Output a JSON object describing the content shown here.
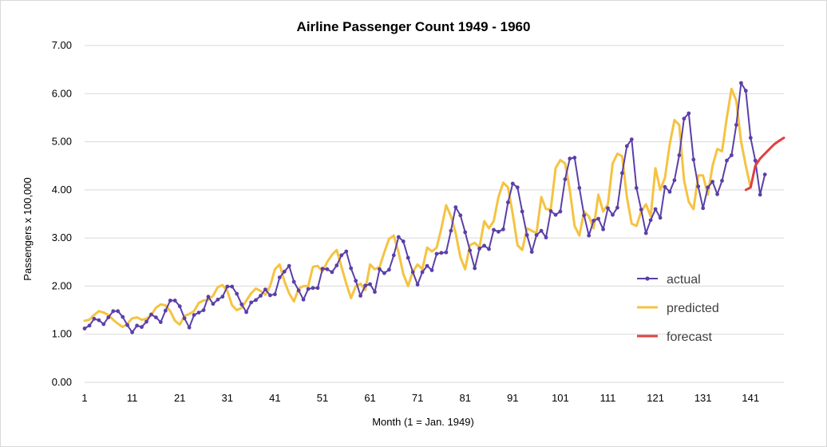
{
  "chart_data": {
    "type": "line",
    "title": "Airline Passenger Count 1949 - 1960",
    "xlabel": "Month  (1 = Jan. 1949)",
    "ylabel": "Passengers x 100,000",
    "ylim": [
      0,
      7
    ],
    "xlim": [
      1,
      148
    ],
    "yticks": [
      "0.00",
      "1.00",
      "2.00",
      "3.00",
      "4.00",
      "5.00",
      "6.00",
      "7.00"
    ],
    "xticks": [
      "1",
      "11",
      "21",
      "31",
      "41",
      "51",
      "61",
      "71",
      "81",
      "91",
      "101",
      "111",
      "121",
      "131",
      "141"
    ],
    "grid": "horizontal",
    "legend_position": "right",
    "series": [
      {
        "name": "actual",
        "color": "#5b3fa8",
        "markers": true,
        "x_start": 1,
        "values": [
          1.12,
          1.18,
          1.32,
          1.29,
          1.21,
          1.35,
          1.48,
          1.48,
          1.36,
          1.19,
          1.04,
          1.18,
          1.15,
          1.26,
          1.41,
          1.35,
          1.25,
          1.49,
          1.7,
          1.7,
          1.58,
          1.33,
          1.14,
          1.4,
          1.45,
          1.5,
          1.78,
          1.63,
          1.72,
          1.78,
          1.99,
          1.99,
          1.84,
          1.62,
          1.46,
          1.66,
          1.71,
          1.8,
          1.93,
          1.81,
          1.83,
          2.18,
          2.3,
          2.42,
          2.09,
          1.91,
          1.72,
          1.94,
          1.96,
          1.96,
          2.36,
          2.35,
          2.29,
          2.43,
          2.64,
          2.72,
          2.37,
          2.11,
          1.8,
          2.01,
          2.04,
          1.88,
          2.35,
          2.27,
          2.34,
          2.64,
          3.02,
          2.93,
          2.59,
          2.29,
          2.03,
          2.29,
          2.42,
          2.33,
          2.67,
          2.69,
          2.7,
          3.15,
          3.64,
          3.47,
          3.12,
          2.74,
          2.37,
          2.78,
          2.84,
          2.77,
          3.17,
          3.13,
          3.18,
          3.74,
          4.13,
          4.05,
          3.55,
          3.06,
          2.71,
          3.06,
          3.15,
          3.01,
          3.56,
          3.48,
          3.55,
          4.22,
          4.65,
          4.67,
          4.04,
          3.47,
          3.05,
          3.36,
          3.4,
          3.18,
          3.62,
          3.48,
          3.63,
          4.35,
          4.91,
          5.05,
          4.04,
          3.59,
          3.1,
          3.37,
          3.6,
          3.42,
          4.06,
          3.96,
          4.2,
          4.72,
          5.48,
          5.59,
          4.63,
          4.07,
          3.62,
          4.05,
          4.17,
          3.91,
          4.19,
          4.61,
          4.72,
          5.35,
          6.22,
          6.06,
          5.08,
          4.61,
          3.9,
          4.32
        ]
      },
      {
        "name": "predicted",
        "color": "#f5c342",
        "markers": false,
        "x_start": 1,
        "values": [
          1.28,
          1.3,
          1.4,
          1.48,
          1.45,
          1.4,
          1.3,
          1.22,
          1.15,
          1.22,
          1.33,
          1.35,
          1.3,
          1.32,
          1.4,
          1.55,
          1.62,
          1.6,
          1.48,
          1.28,
          1.2,
          1.38,
          1.42,
          1.48,
          1.65,
          1.7,
          1.72,
          1.8,
          1.98,
          2.02,
          1.9,
          1.6,
          1.5,
          1.55,
          1.7,
          1.85,
          1.95,
          1.9,
          1.82,
          2.0,
          2.35,
          2.45,
          2.1,
          1.85,
          1.68,
          1.95,
          2.0,
          2.0,
          2.4,
          2.42,
          2.3,
          2.5,
          2.65,
          2.75,
          2.4,
          2.05,
          1.75,
          2.0,
          2.05,
          1.92,
          2.45,
          2.35,
          2.4,
          2.7,
          2.98,
          3.05,
          2.7,
          2.25,
          2.0,
          2.3,
          2.45,
          2.35,
          2.8,
          2.72,
          2.8,
          3.2,
          3.68,
          3.45,
          3.1,
          2.6,
          2.35,
          2.85,
          2.9,
          2.8,
          3.35,
          3.2,
          3.35,
          3.85,
          4.15,
          4.05,
          3.5,
          2.85,
          2.75,
          3.2,
          3.15,
          3.1,
          3.85,
          3.6,
          3.6,
          4.45,
          4.62,
          4.55,
          4.0,
          3.25,
          3.05,
          3.55,
          3.45,
          3.2,
          3.9,
          3.55,
          3.7,
          4.55,
          4.75,
          4.7,
          3.85,
          3.3,
          3.25,
          3.55,
          3.7,
          3.45,
          4.45,
          4.0,
          4.25,
          4.95,
          5.45,
          5.35,
          4.2,
          3.75,
          3.6,
          4.3,
          4.3,
          3.9,
          4.5,
          4.85,
          4.8,
          5.5,
          6.1,
          5.85,
          5.0,
          4.5,
          4.05
        ]
      },
      {
        "name": "forecast",
        "color": "#e04040",
        "markers": false,
        "x_start": 140,
        "values": [
          4.0,
          4.05,
          4.5,
          4.65,
          4.75,
          4.85,
          4.95,
          5.02,
          5.08
        ]
      }
    ]
  }
}
